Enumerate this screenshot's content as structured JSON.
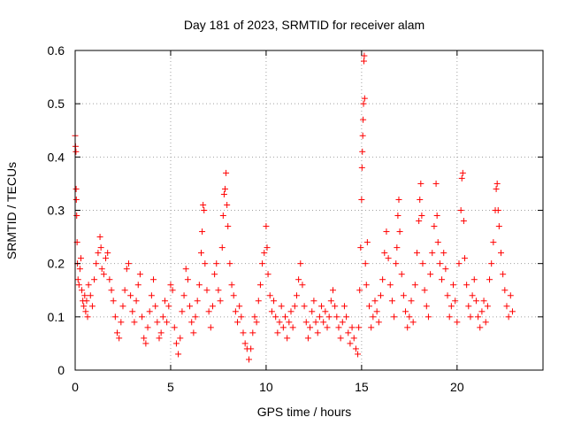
{
  "chart_data": {
    "type": "scatter",
    "title": "Day 181 of 2023, SRMTID for receiver alam",
    "xlabel": "GPS time / hours",
    "ylabel": "SRMTID / TECUs",
    "xlim": [
      0,
      24.5
    ],
    "ylim": [
      0,
      0.6
    ],
    "xticks": [
      0,
      5,
      10,
      15,
      20
    ],
    "xtick_labels": [
      "0",
      "5",
      "10",
      "15",
      "20"
    ],
    "yticks": [
      0,
      0.1,
      0.2,
      0.3,
      0.4,
      0.5,
      0.6
    ],
    "ytick_labels": [
      "0",
      "0.1",
      "0.2",
      "0.3",
      "0.4",
      "0.5",
      "0.6"
    ],
    "grid": true,
    "marker": "+",
    "series": [
      {
        "name": "SRMTID",
        "color": "#ff0000",
        "points": [
          [
            0.0,
            0.44
          ],
          [
            0.02,
            0.42
          ],
          [
            0.04,
            0.41
          ],
          [
            0.05,
            0.34
          ],
          [
            0.06,
            0.32
          ],
          [
            0.08,
            0.29
          ],
          [
            0.1,
            0.24
          ],
          [
            0.12,
            0.2
          ],
          [
            0.15,
            0.17
          ],
          [
            0.2,
            0.16
          ],
          [
            0.25,
            0.19
          ],
          [
            0.3,
            0.21
          ],
          [
            0.35,
            0.15
          ],
          [
            0.4,
            0.13
          ],
          [
            0.45,
            0.12
          ],
          [
            0.5,
            0.14
          ],
          [
            0.55,
            0.11
          ],
          [
            0.6,
            0.13
          ],
          [
            0.65,
            0.1
          ],
          [
            0.7,
            0.16
          ],
          [
            0.8,
            0.14
          ],
          [
            0.9,
            0.12
          ],
          [
            1.0,
            0.17
          ],
          [
            1.1,
            0.2
          ],
          [
            1.2,
            0.22
          ],
          [
            1.3,
            0.25
          ],
          [
            1.35,
            0.23
          ],
          [
            1.4,
            0.19
          ],
          [
            1.5,
            0.18
          ],
          [
            1.6,
            0.21
          ],
          [
            1.7,
            0.22
          ],
          [
            1.8,
            0.17
          ],
          [
            1.9,
            0.15
          ],
          [
            2.0,
            0.13
          ],
          [
            2.1,
            0.1
          ],
          [
            2.2,
            0.07
          ],
          [
            2.3,
            0.06
          ],
          [
            2.4,
            0.09
          ],
          [
            2.5,
            0.12
          ],
          [
            2.6,
            0.15
          ],
          [
            2.7,
            0.19
          ],
          [
            2.8,
            0.2
          ],
          [
            2.9,
            0.14
          ],
          [
            3.0,
            0.11
          ],
          [
            3.1,
            0.09
          ],
          [
            3.2,
            0.13
          ],
          [
            3.3,
            0.16
          ],
          [
            3.4,
            0.18
          ],
          [
            3.5,
            0.1
          ],
          [
            3.6,
            0.06
          ],
          [
            3.7,
            0.05
          ],
          [
            3.8,
            0.08
          ],
          [
            3.9,
            0.11
          ],
          [
            4.0,
            0.14
          ],
          [
            4.1,
            0.17
          ],
          [
            4.2,
            0.12
          ],
          [
            4.3,
            0.09
          ],
          [
            4.4,
            0.06
          ],
          [
            4.5,
            0.07
          ],
          [
            4.6,
            0.1
          ],
          [
            4.7,
            0.13
          ],
          [
            4.8,
            0.09
          ],
          [
            4.9,
            0.12
          ],
          [
            5.0,
            0.16
          ],
          [
            5.1,
            0.15
          ],
          [
            5.2,
            0.08
          ],
          [
            5.3,
            0.05
          ],
          [
            5.4,
            0.03
          ],
          [
            5.5,
            0.06
          ],
          [
            5.6,
            0.11
          ],
          [
            5.7,
            0.14
          ],
          [
            5.8,
            0.19
          ],
          [
            5.9,
            0.17
          ],
          [
            6.0,
            0.12
          ],
          [
            6.1,
            0.09
          ],
          [
            6.2,
            0.07
          ],
          [
            6.3,
            0.1
          ],
          [
            6.4,
            0.13
          ],
          [
            6.5,
            0.16
          ],
          [
            6.6,
            0.22
          ],
          [
            6.65,
            0.26
          ],
          [
            6.7,
            0.31
          ],
          [
            6.75,
            0.3
          ],
          [
            6.8,
            0.2
          ],
          [
            6.9,
            0.15
          ],
          [
            7.0,
            0.11
          ],
          [
            7.1,
            0.08
          ],
          [
            7.2,
            0.12
          ],
          [
            7.3,
            0.18
          ],
          [
            7.4,
            0.2
          ],
          [
            7.5,
            0.15
          ],
          [
            7.6,
            0.13
          ],
          [
            7.7,
            0.23
          ],
          [
            7.75,
            0.29
          ],
          [
            7.8,
            0.33
          ],
          [
            7.85,
            0.34
          ],
          [
            7.9,
            0.37
          ],
          [
            7.95,
            0.31
          ],
          [
            8.0,
            0.27
          ],
          [
            8.1,
            0.2
          ],
          [
            8.2,
            0.16
          ],
          [
            8.3,
            0.14
          ],
          [
            8.4,
            0.11
          ],
          [
            8.5,
            0.09
          ],
          [
            8.6,
            0.12
          ],
          [
            8.7,
            0.1
          ],
          [
            8.8,
            0.07
          ],
          [
            8.9,
            0.05
          ],
          [
            9.0,
            0.04
          ],
          [
            9.1,
            0.02
          ],
          [
            9.2,
            0.04
          ],
          [
            9.3,
            0.07
          ],
          [
            9.4,
            0.1
          ],
          [
            9.5,
            0.09
          ],
          [
            9.6,
            0.13
          ],
          [
            9.7,
            0.16
          ],
          [
            9.8,
            0.2
          ],
          [
            9.9,
            0.22
          ],
          [
            10.0,
            0.27
          ],
          [
            10.05,
            0.23
          ],
          [
            10.1,
            0.18
          ],
          [
            10.2,
            0.14
          ],
          [
            10.3,
            0.11
          ],
          [
            10.4,
            0.13
          ],
          [
            10.5,
            0.1
          ],
          [
            10.6,
            0.07
          ],
          [
            10.7,
            0.09
          ],
          [
            10.8,
            0.12
          ],
          [
            10.9,
            0.08
          ],
          [
            11.0,
            0.1
          ],
          [
            11.1,
            0.06
          ],
          [
            11.2,
            0.09
          ],
          [
            11.3,
            0.11
          ],
          [
            11.4,
            0.08
          ],
          [
            11.5,
            0.12
          ],
          [
            11.6,
            0.14
          ],
          [
            11.7,
            0.17
          ],
          [
            11.8,
            0.2
          ],
          [
            11.9,
            0.16
          ],
          [
            12.0,
            0.12
          ],
          [
            12.1,
            0.09
          ],
          [
            12.2,
            0.06
          ],
          [
            12.3,
            0.08
          ],
          [
            12.4,
            0.11
          ],
          [
            12.5,
            0.13
          ],
          [
            12.6,
            0.09
          ],
          [
            12.7,
            0.07
          ],
          [
            12.8,
            0.1
          ],
          [
            12.9,
            0.12
          ],
          [
            13.0,
            0.09
          ],
          [
            13.1,
            0.11
          ],
          [
            13.2,
            0.08
          ],
          [
            13.3,
            0.1
          ],
          [
            13.4,
            0.13
          ],
          [
            13.5,
            0.15
          ],
          [
            13.6,
            0.12
          ],
          [
            13.7,
            0.1
          ],
          [
            13.8,
            0.08
          ],
          [
            13.9,
            0.06
          ],
          [
            14.0,
            0.09
          ],
          [
            14.1,
            0.12
          ],
          [
            14.2,
            0.1
          ],
          [
            14.3,
            0.07
          ],
          [
            14.4,
            0.05
          ],
          [
            14.5,
            0.08
          ],
          [
            14.6,
            0.06
          ],
          [
            14.7,
            0.04
          ],
          [
            14.8,
            0.03
          ],
          [
            14.85,
            0.08
          ],
          [
            14.9,
            0.15
          ],
          [
            14.95,
            0.23
          ],
          [
            15.0,
            0.32
          ],
          [
            15.02,
            0.38
          ],
          [
            15.04,
            0.41
          ],
          [
            15.06,
            0.44
          ],
          [
            15.08,
            0.47
          ],
          [
            15.1,
            0.5
          ],
          [
            15.12,
            0.58
          ],
          [
            15.14,
            0.59
          ],
          [
            15.16,
            0.51
          ],
          [
            15.2,
            0.2
          ],
          [
            15.25,
            0.16
          ],
          [
            15.3,
            0.24
          ],
          [
            15.4,
            0.12
          ],
          [
            15.5,
            0.08
          ],
          [
            15.6,
            0.1
          ],
          [
            15.7,
            0.13
          ],
          [
            15.8,
            0.11
          ],
          [
            15.9,
            0.09
          ],
          [
            16.0,
            0.14
          ],
          [
            16.1,
            0.17
          ],
          [
            16.2,
            0.22
          ],
          [
            16.3,
            0.26
          ],
          [
            16.4,
            0.21
          ],
          [
            16.5,
            0.16
          ],
          [
            16.6,
            0.13
          ],
          [
            16.7,
            0.1
          ],
          [
            16.8,
            0.2
          ],
          [
            16.85,
            0.23
          ],
          [
            16.9,
            0.29
          ],
          [
            16.95,
            0.32
          ],
          [
            17.0,
            0.26
          ],
          [
            17.1,
            0.18
          ],
          [
            17.2,
            0.14
          ],
          [
            17.3,
            0.11
          ],
          [
            17.4,
            0.08
          ],
          [
            17.5,
            0.1
          ],
          [
            17.6,
            0.13
          ],
          [
            17.7,
            0.09
          ],
          [
            17.8,
            0.16
          ],
          [
            17.9,
            0.22
          ],
          [
            18.0,
            0.28
          ],
          [
            18.05,
            0.32
          ],
          [
            18.1,
            0.35
          ],
          [
            18.15,
            0.29
          ],
          [
            18.2,
            0.2
          ],
          [
            18.3,
            0.15
          ],
          [
            18.4,
            0.12
          ],
          [
            18.5,
            0.1
          ],
          [
            18.6,
            0.18
          ],
          [
            18.7,
            0.22
          ],
          [
            18.8,
            0.27
          ],
          [
            18.9,
            0.35
          ],
          [
            18.95,
            0.29
          ],
          [
            19.0,
            0.24
          ],
          [
            19.1,
            0.2
          ],
          [
            19.2,
            0.17
          ],
          [
            19.3,
            0.22
          ],
          [
            19.4,
            0.19
          ],
          [
            19.5,
            0.14
          ],
          [
            19.6,
            0.1
          ],
          [
            19.7,
            0.12
          ],
          [
            19.8,
            0.16
          ],
          [
            19.9,
            0.13
          ],
          [
            20.0,
            0.09
          ],
          [
            20.1,
            0.2
          ],
          [
            20.2,
            0.3
          ],
          [
            20.25,
            0.36
          ],
          [
            20.3,
            0.37
          ],
          [
            20.35,
            0.28
          ],
          [
            20.4,
            0.21
          ],
          [
            20.5,
            0.16
          ],
          [
            20.6,
            0.12
          ],
          [
            20.7,
            0.1
          ],
          [
            20.8,
            0.14
          ],
          [
            20.9,
            0.17
          ],
          [
            21.0,
            0.13
          ],
          [
            21.1,
            0.1
          ],
          [
            21.2,
            0.08
          ],
          [
            21.3,
            0.11
          ],
          [
            21.4,
            0.13
          ],
          [
            21.5,
            0.09
          ],
          [
            21.6,
            0.12
          ],
          [
            21.7,
            0.17
          ],
          [
            21.8,
            0.2
          ],
          [
            21.9,
            0.24
          ],
          [
            22.0,
            0.3
          ],
          [
            22.05,
            0.34
          ],
          [
            22.1,
            0.35
          ],
          [
            22.15,
            0.3
          ],
          [
            22.2,
            0.27
          ],
          [
            22.3,
            0.22
          ],
          [
            22.4,
            0.18
          ],
          [
            22.5,
            0.15
          ],
          [
            22.6,
            0.12
          ],
          [
            22.7,
            0.1
          ],
          [
            22.8,
            0.14
          ],
          [
            22.9,
            0.11
          ]
        ]
      }
    ]
  }
}
